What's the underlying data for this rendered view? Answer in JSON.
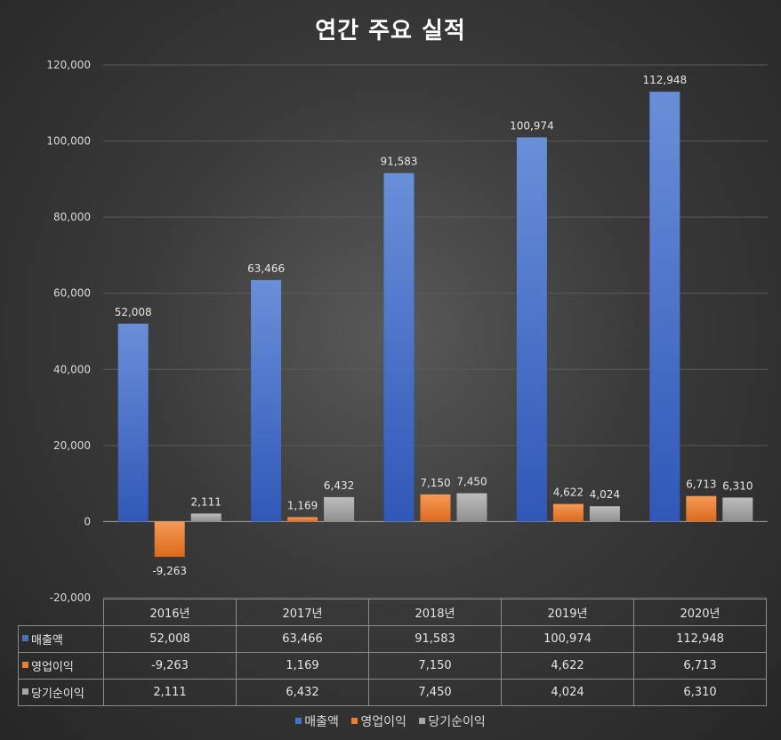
{
  "chart_data": {
    "type": "bar",
    "title": "연간 주요 실적",
    "categories": [
      "2016년",
      "2017년",
      "2018년",
      "2019년",
      "2020년"
    ],
    "series": [
      {
        "name": "매출액",
        "color": "#4472c4",
        "values": [
          52008,
          63466,
          91583,
          100974,
          112948
        ],
        "labels": [
          "52,008",
          "63,466",
          "91,583",
          "100,974",
          "112,948"
        ]
      },
      {
        "name": "영업이익",
        "color": "#ed7d31",
        "values": [
          -9263,
          1169,
          7150,
          4622,
          6713
        ],
        "labels": [
          "-9,263",
          "1,169",
          "7,150",
          "4,622",
          "6,713"
        ]
      },
      {
        "name": "당기순이익",
        "color": "#a5a5a5",
        "values": [
          2111,
          6432,
          7450,
          4024,
          6310
        ],
        "labels": [
          "2,111",
          "6,432",
          "7,450",
          "4,024",
          "6,310"
        ]
      }
    ],
    "ylim": [
      -20000,
      120000
    ],
    "yticks": [
      -20000,
      0,
      20000,
      40000,
      60000,
      80000,
      100000,
      120000
    ],
    "ytick_labels": [
      "-20,000",
      "0",
      "20,000",
      "40,000",
      "60,000",
      "80,000",
      "100,000",
      "120,000"
    ],
    "grid": true,
    "legend": "bottom",
    "data_table": true
  }
}
